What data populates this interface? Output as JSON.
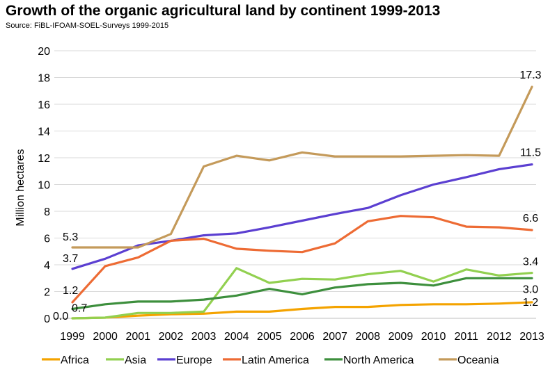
{
  "chart_data": {
    "type": "line",
    "title": "Growth of the organic agricultural land  by continent 1999-2013",
    "subtitle": "Source: FiBL-IFOAM-SOEL-Surveys 1999-2015",
    "xlabel": "",
    "ylabel": "Million hectares",
    "ylim": [
      0,
      20
    ],
    "yticks": [
      "0",
      "2",
      "4",
      "6",
      "8",
      "10",
      "12",
      "14",
      "16",
      "18",
      "20"
    ],
    "categories": [
      "1999",
      "2000",
      "2001",
      "2002",
      "2003",
      "2004",
      "2005",
      "2006",
      "2007",
      "2008",
      "2009",
      "2010",
      "2011",
      "2012",
      "2013"
    ],
    "grid": "horizontal",
    "legend": "bottom",
    "series": [
      {
        "name": "Africa",
        "color": "#f4a300",
        "values": [
          0.0,
          0.05,
          0.2,
          0.3,
          0.35,
          0.5,
          0.5,
          0.7,
          0.85,
          0.85,
          1.0,
          1.05,
          1.05,
          1.1,
          1.2
        ]
      },
      {
        "name": "Asia",
        "color": "#92d050",
        "values": [
          0.0,
          0.05,
          0.4,
          0.4,
          0.5,
          3.75,
          2.65,
          2.95,
          2.9,
          3.3,
          3.55,
          2.75,
          3.65,
          3.2,
          3.4
        ]
      },
      {
        "name": "Europe",
        "color": "#5b3fd1",
        "values": [
          3.7,
          4.45,
          5.45,
          5.8,
          6.2,
          6.35,
          6.8,
          7.3,
          7.8,
          8.25,
          9.2,
          10.0,
          10.55,
          11.15,
          11.5
        ]
      },
      {
        "name": "Latin America",
        "color": "#ed6b34",
        "values": [
          1.2,
          3.9,
          4.55,
          5.8,
          5.95,
          5.2,
          5.05,
          4.95,
          5.6,
          7.25,
          7.65,
          7.55,
          6.85,
          6.8,
          6.6
        ]
      },
      {
        "name": "North America",
        "color": "#3d8f3d",
        "values": [
          0.7,
          1.05,
          1.25,
          1.25,
          1.4,
          1.7,
          2.2,
          1.8,
          2.3,
          2.55,
          2.65,
          2.45,
          3.0,
          3.0,
          3.0
        ]
      },
      {
        "name": "Oceania",
        "color": "#c49a5a",
        "values": [
          5.3,
          5.3,
          5.3,
          6.3,
          11.35,
          12.15,
          11.8,
          12.4,
          12.1,
          12.1,
          12.1,
          12.15,
          12.2,
          12.15,
          17.3
        ]
      }
    ],
    "data_labels": [
      {
        "series": "Oceania",
        "index": 0,
        "text": "5.3"
      },
      {
        "series": "Europe",
        "index": 0,
        "text": "3.7"
      },
      {
        "series": "Latin America",
        "index": 0,
        "text": "1.2"
      },
      {
        "series": "North America",
        "index": 0,
        "text": "0.7"
      },
      {
        "series": "Africa",
        "index": 0,
        "text": "0.0"
      },
      {
        "series": "Oceania",
        "index": 14,
        "text": "17.3"
      },
      {
        "series": "Europe",
        "index": 14,
        "text": "11.5"
      },
      {
        "series": "Latin America",
        "index": 14,
        "text": "6.6"
      },
      {
        "series": "Asia",
        "index": 14,
        "text": "3.4"
      },
      {
        "series": "North America",
        "index": 14,
        "text": "3.0"
      },
      {
        "series": "Africa",
        "index": 14,
        "text": "1.2"
      }
    ]
  }
}
